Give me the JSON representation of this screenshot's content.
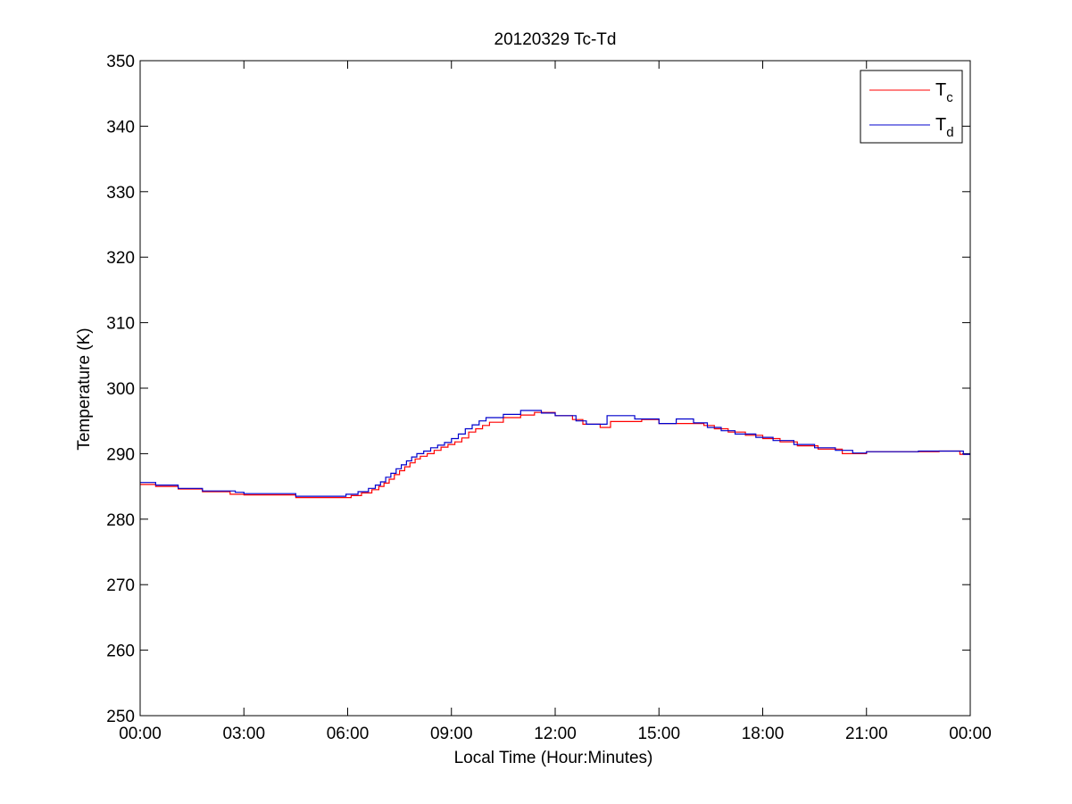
{
  "chart_data": {
    "type": "line",
    "title": "20120329 Tc-Td",
    "xlabel": "Local Time (Hour:Minutes)",
    "ylabel": "Temperature (K)",
    "xlim": [
      0,
      24
    ],
    "ylim": [
      250,
      350
    ],
    "x_ticks": [
      0,
      3,
      6,
      9,
      12,
      15,
      18,
      21,
      24
    ],
    "x_tick_labels": [
      "00:00",
      "03:00",
      "06:00",
      "09:00",
      "12:00",
      "15:00",
      "18:00",
      "21:00",
      "00:00"
    ],
    "y_ticks": [
      250,
      260,
      270,
      280,
      290,
      300,
      310,
      320,
      330,
      340,
      350
    ],
    "y_tick_labels": [
      "250",
      "260",
      "270",
      "280",
      "290",
      "300",
      "310",
      "320",
      "330",
      "340",
      "350"
    ],
    "grid": false,
    "legend": {
      "position": "top-right",
      "entries": [
        {
          "base": "T",
          "sub": "c"
        },
        {
          "base": "T",
          "sub": "d"
        }
      ]
    },
    "series": [
      {
        "color": "#ff0000",
        "x": [
          0.0,
          0.45,
          1.1,
          1.8,
          2.6,
          3.0,
          4.5,
          6.1,
          6.4,
          6.7,
          6.9,
          7.05,
          7.2,
          7.35,
          7.5,
          7.65,
          7.8,
          7.95,
          8.1,
          8.3,
          8.5,
          8.7,
          8.9,
          9.1,
          9.3,
          9.5,
          9.7,
          9.9,
          10.1,
          10.5,
          11.0,
          11.4,
          12.0,
          12.5,
          12.8,
          13.3,
          13.6,
          14.5,
          15.0,
          16.3,
          16.6,
          17.0,
          17.5,
          18.0,
          18.5,
          19.0,
          19.6,
          20.3,
          21.0,
          23.1,
          23.7,
          24.0
        ],
        "y": [
          285.3,
          285.0,
          284.6,
          284.2,
          283.8,
          283.7,
          283.3,
          283.6,
          284.0,
          284.5,
          285.0,
          285.5,
          286.1,
          286.8,
          287.4,
          288.0,
          288.6,
          289.2,
          289.6,
          290.0,
          290.5,
          291.0,
          291.4,
          291.8,
          292.4,
          293.3,
          293.8,
          294.3,
          294.8,
          295.5,
          295.9,
          296.3,
          295.8,
          295.2,
          294.5,
          294.0,
          294.9,
          295.2,
          294.6,
          294.3,
          293.8,
          293.3,
          292.8,
          292.3,
          291.8,
          291.2,
          290.7,
          290.0,
          290.3,
          290.4,
          289.9,
          289.9
        ]
      },
      {
        "color": "#0000cc",
        "x": [
          0.0,
          0.45,
          1.1,
          1.8,
          2.75,
          3.0,
          4.5,
          5.95,
          6.3,
          6.6,
          6.8,
          6.95,
          7.1,
          7.25,
          7.4,
          7.55,
          7.7,
          7.85,
          8.0,
          8.2,
          8.4,
          8.6,
          8.8,
          9.0,
          9.2,
          9.4,
          9.6,
          9.8,
          10.0,
          10.5,
          11.0,
          11.6,
          12.0,
          12.6,
          12.9,
          13.5,
          14.3,
          15.0,
          15.5,
          16.0,
          16.4,
          16.8,
          17.2,
          17.8,
          18.3,
          18.9,
          19.5,
          20.1,
          20.6,
          21.0,
          22.5,
          23.8,
          24.0
        ],
        "y": [
          285.6,
          285.2,
          284.7,
          284.3,
          284.1,
          283.9,
          283.5,
          283.8,
          284.2,
          284.7,
          285.2,
          285.7,
          286.4,
          287.0,
          287.7,
          288.3,
          288.9,
          289.5,
          290.0,
          290.4,
          290.9,
          291.3,
          291.7,
          292.3,
          293.0,
          293.8,
          294.4,
          295.0,
          295.5,
          296.0,
          296.6,
          296.2,
          295.8,
          295.0,
          294.5,
          295.8,
          295.3,
          294.6,
          295.3,
          294.7,
          294.0,
          293.5,
          293.0,
          292.5,
          292.0,
          291.4,
          290.9,
          290.5,
          290.1,
          290.3,
          290.4,
          289.9,
          289.9
        ]
      }
    ]
  }
}
